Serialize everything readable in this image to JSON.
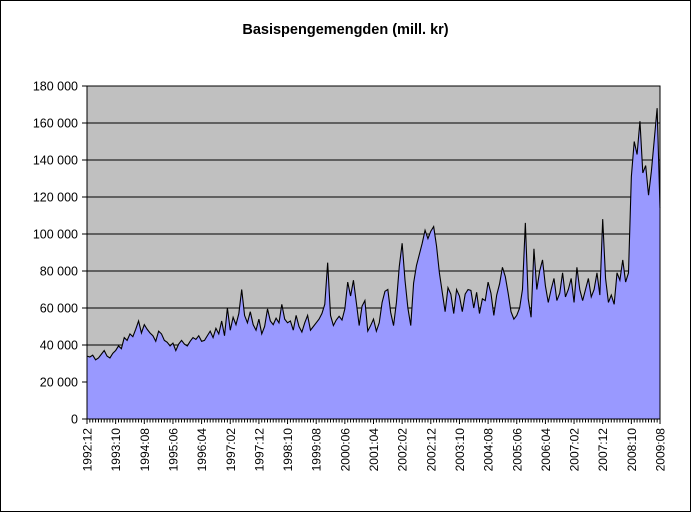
{
  "chart_data": {
    "type": "area",
    "title": "Basispengemengden (mill. kr)",
    "legend": "none",
    "grid": "horizontal",
    "x_start": "1992:12",
    "x_frequency": "monthly",
    "x_tick_interval": 10,
    "x_tick_labels": [
      "1992:12",
      "1993:10",
      "1994:08",
      "1995:06",
      "1996:04",
      "1997:02",
      "1997:12",
      "1998:10",
      "1999:08",
      "2000:06",
      "2001:04",
      "2002:02",
      "2002:12",
      "2003:10",
      "2004:08",
      "2005:06",
      "2006:04",
      "2007:02",
      "2007:12",
      "2008:10",
      "2009:08"
    ],
    "ylim": [
      0,
      180000
    ],
    "y_ticks": [
      0,
      20000,
      40000,
      60000,
      80000,
      100000,
      120000,
      140000,
      160000,
      180000
    ],
    "y_tick_labels": [
      "0",
      "20 000",
      "40 000",
      "60 000",
      "80 000",
      "100 000",
      "120 000",
      "140 000",
      "160 000",
      "180 000"
    ],
    "series": [
      {
        "name": "Basispengemengden",
        "unit": "mill. kr",
        "values": [
          34000,
          33500,
          34500,
          32000,
          33000,
          35000,
          37000,
          34000,
          33000,
          35500,
          37000,
          39500,
          38000,
          44000,
          42500,
          46000,
          44500,
          48500,
          53000,
          46500,
          51000,
          48500,
          46500,
          45000,
          42000,
          47500,
          46000,
          42500,
          41500,
          39500,
          41000,
          37000,
          40500,
          42500,
          40500,
          39500,
          42000,
          44000,
          43000,
          45000,
          42000,
          42500,
          45000,
          47500,
          44000,
          49000,
          46000,
          53000,
          45000,
          60000,
          48000,
          55000,
          51000,
          57000,
          70000,
          56000,
          52000,
          58000,
          51000,
          48000,
          54000,
          46000,
          50000,
          59500,
          53000,
          51000,
          54500,
          52000,
          62000,
          54000,
          52000,
          53000,
          48000,
          56000,
          50000,
          47000,
          52000,
          56000,
          48000,
          50000,
          52000,
          54000,
          57000,
          62000,
          84500,
          56000,
          50500,
          53500,
          55500,
          53500,
          59500,
          74000,
          66500,
          75000,
          63000,
          50500,
          61000,
          64000,
          47500,
          50500,
          54000,
          47500,
          52000,
          63000,
          69000,
          70000,
          57500,
          50500,
          63000,
          82500,
          95000,
          75000,
          60000,
          50500,
          73500,
          83000,
          89000,
          95000,
          102000,
          97500,
          101500,
          104000,
          93500,
          79000,
          68500,
          58000,
          71000,
          67500,
          57000,
          70000,
          66500,
          58000,
          67500,
          70000,
          69500,
          60000,
          68500,
          57000,
          65000,
          64000,
          74000,
          68000,
          56000,
          67000,
          73000,
          82000,
          77000,
          68000,
          58000,
          54000,
          56000,
          60000,
          70000,
          106000,
          65000,
          55000,
          92000,
          70000,
          80000,
          86000,
          72000,
          63000,
          70000,
          76000,
          64000,
          68000,
          79000,
          66000,
          70000,
          76000,
          63000,
          82000,
          70000,
          64000,
          70000,
          76000,
          66000,
          70000,
          79000,
          67000,
          108000,
          76000,
          63000,
          67000,
          62000,
          79000,
          75000,
          86000,
          74000,
          79000,
          131000,
          150000,
          143000,
          161000,
          133000,
          137000,
          121000,
          134000,
          151000,
          168000,
          114000
        ]
      }
    ],
    "colors": {
      "fill": "#9999FF",
      "line": "#000000",
      "plot_bg": "#C0C0C0",
      "grid": "#000000",
      "background": "#FFFFFF"
    }
  }
}
